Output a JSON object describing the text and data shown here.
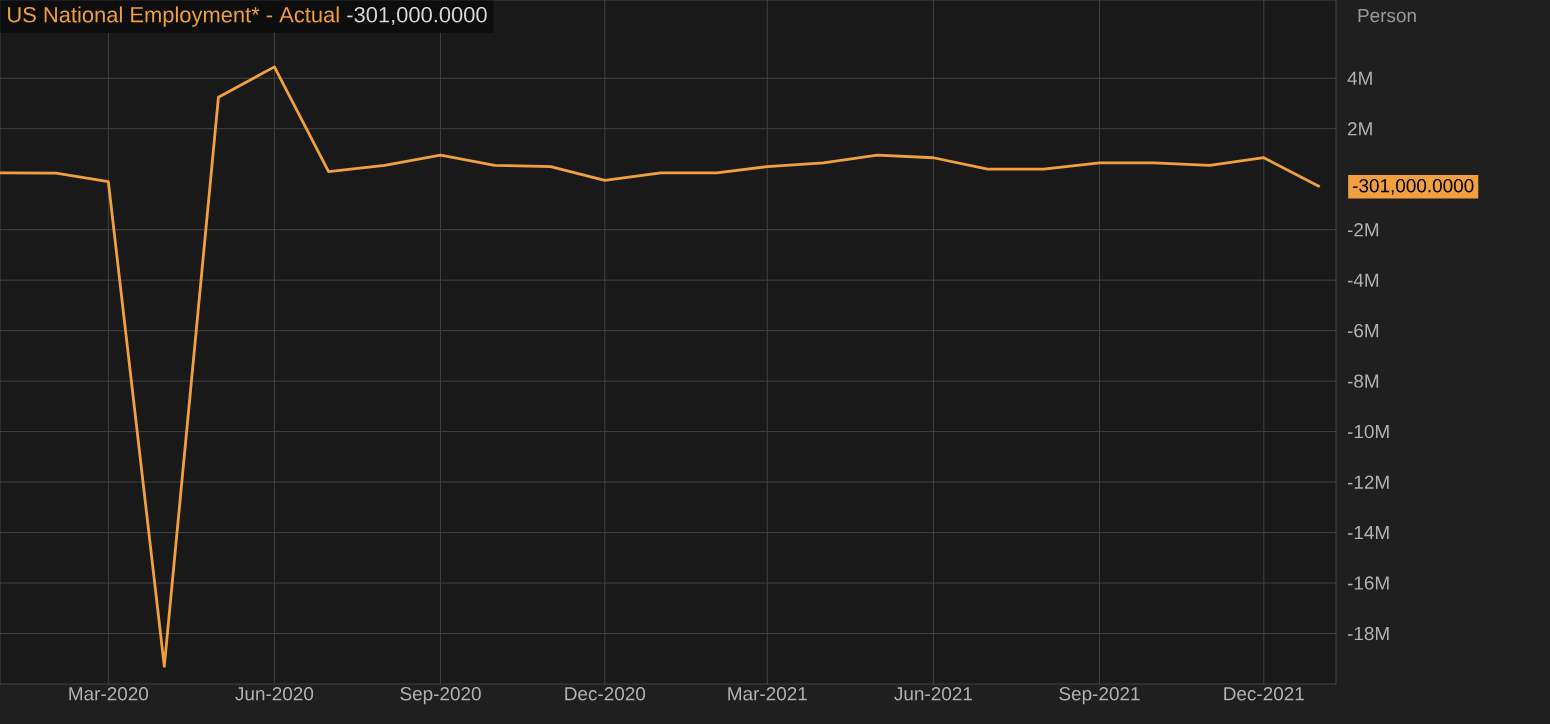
{
  "chart_data": {
    "type": "line",
    "title": "US National Employment* - Actual",
    "ylabel": "Person",
    "x": [
      "2020-01",
      "2020-02",
      "2020-03",
      "2020-04",
      "2020-05",
      "2020-06",
      "2020-07",
      "2020-08",
      "2020-09",
      "2020-10",
      "2020-11",
      "2020-12",
      "2021-01",
      "2021-02",
      "2021-03",
      "2021-04",
      "2021-05",
      "2021-06",
      "2021-07",
      "2021-08",
      "2021-09",
      "2021-10",
      "2021-11",
      "2021-12",
      "2022-01"
    ],
    "series": [
      {
        "color": "#f0a040",
        "values": [
          0.25,
          0.24,
          -0.1,
          -19.3,
          3.25,
          4.45,
          0.3,
          0.55,
          0.95,
          0.55,
          0.5,
          -0.05,
          0.25,
          0.25,
          0.5,
          0.65,
          0.95,
          0.85,
          0.4,
          0.4,
          0.65,
          0.65,
          0.55,
          0.85,
          -0.301
        ]
      }
    ],
    "annotations": [
      "-301,000.0000",
      {
        "text": "-301,000.0000",
        "x": "2022-01",
        "y": -0.301
      }
    ],
    "xlim": [
      "2020-01-01",
      "2022-01-10"
    ],
    "xticks": [
      {
        "value": "2020-03",
        "label": "Mar-2020"
      },
      {
        "value": "2020-06",
        "label": "Jun-2020"
      },
      {
        "value": "2020-09",
        "label": "Sep-2020"
      },
      {
        "value": "2020-12",
        "label": "Dec-2020"
      },
      {
        "value": "2021-03",
        "label": "Mar-2021"
      },
      {
        "value": "2021-06",
        "label": "Jun-2021"
      },
      {
        "value": "2021-09",
        "label": "Sep-2021"
      },
      {
        "value": "2021-12",
        "label": "Dec-2021"
      }
    ],
    "ylim": [
      -20,
      7.1
    ],
    "yticks": [
      {
        "value": 4,
        "label": "4M"
      },
      {
        "value": 2,
        "label": "2M"
      },
      {
        "value": -2,
        "label": "-2M"
      },
      {
        "value": -4,
        "label": "-4M"
      },
      {
        "value": -6,
        "label": "-6M"
      },
      {
        "value": -8,
        "label": "-8M"
      },
      {
        "value": -10,
        "label": "-10M"
      },
      {
        "value": -12,
        "label": "-12M"
      },
      {
        "value": -14,
        "label": "-14M"
      },
      {
        "value": -16,
        "label": "-16M"
      },
      {
        "value": -18,
        "label": "-18M"
      }
    ],
    "grid": true,
    "marker": "none",
    "line_style": "solid"
  }
}
